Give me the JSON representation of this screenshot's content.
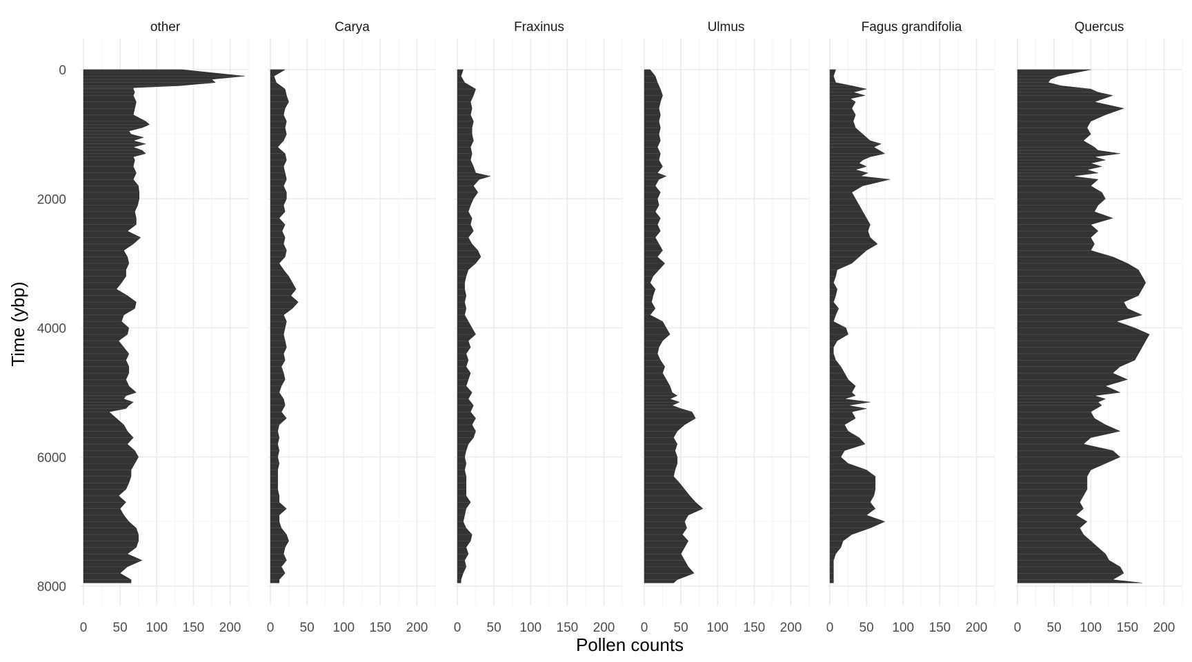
{
  "chart_data": {
    "type": "area",
    "orientation": "horizontal",
    "xlabel": "Pollen counts",
    "ylabel": "Time (ybp)",
    "xlim": [
      0,
      230
    ],
    "ylim": [
      0,
      8000
    ],
    "y_reversed": true,
    "x_ticks": [
      0,
      50,
      100,
      150,
      200
    ],
    "y_ticks": [
      0,
      2000,
      4000,
      6000,
      8000
    ],
    "fill_color": "#333333",
    "panels": [
      {
        "name": "other",
        "time": [
          0,
          100,
          150,
          200,
          250,
          280,
          300,
          350,
          400,
          500,
          600,
          700,
          800,
          850,
          900,
          950,
          1000,
          1050,
          1100,
          1150,
          1200,
          1250,
          1300,
          1350,
          1400,
          1500,
          1600,
          1700,
          1800,
          1900,
          2000,
          2100,
          2200,
          2300,
          2400,
          2500,
          2600,
          2700,
          2800,
          2900,
          3000,
          3100,
          3200,
          3300,
          3400,
          3500,
          3600,
          3700,
          3800,
          3900,
          4000,
          4100,
          4200,
          4300,
          4400,
          4500,
          4600,
          4700,
          4800,
          4900,
          5000,
          5050,
          5100,
          5150,
          5200,
          5250,
          5300,
          5400,
          5500,
          5600,
          5700,
          5800,
          5900,
          6000,
          6100,
          6200,
          6300,
          6400,
          6500,
          6600,
          6700,
          6800,
          6900,
          7000,
          7100,
          7200,
          7300,
          7400,
          7500,
          7600,
          7700,
          7800,
          7900,
          7950
        ],
        "counts": [
          135,
          220,
          175,
          180,
          130,
          68,
          68,
          70,
          68,
          72,
          70,
          68,
          85,
          90,
          80,
          62,
          65,
          82,
          68,
          85,
          68,
          80,
          85,
          68,
          70,
          68,
          72,
          68,
          75,
          76,
          76,
          74,
          70,
          72,
          72,
          60,
          78,
          68,
          55,
          60,
          62,
          58,
          58,
          52,
          45,
          60,
          72,
          70,
          55,
          52,
          62,
          60,
          48,
          55,
          62,
          58,
          62,
          62,
          58,
          62,
          72,
          58,
          55,
          68,
          62,
          58,
          35,
          45,
          55,
          60,
          68,
          60,
          70,
          75,
          70,
          65,
          65,
          62,
          58,
          48,
          58,
          50,
          55,
          62,
          72,
          75,
          75,
          72,
          60,
          80,
          60,
          50,
          65,
          65
        ]
      },
      {
        "name": "Carya",
        "time": [
          0,
          100,
          200,
          300,
          400,
          500,
          600,
          700,
          800,
          900,
          1000,
          1100,
          1200,
          1300,
          1400,
          1500,
          1600,
          1700,
          1800,
          1900,
          2000,
          2100,
          2200,
          2300,
          2400,
          2500,
          2600,
          2700,
          2800,
          2900,
          3000,
          3100,
          3200,
          3300,
          3400,
          3500,
          3600,
          3700,
          3800,
          3900,
          4000,
          4100,
          4200,
          4300,
          4400,
          4500,
          4600,
          4700,
          4800,
          4900,
          5000,
          5100,
          5200,
          5300,
          5400,
          5500,
          5600,
          5700,
          5800,
          5900,
          6000,
          6100,
          6200,
          6300,
          6400,
          6500,
          6600,
          6700,
          6800,
          6900,
          7000,
          7100,
          7200,
          7300,
          7400,
          7500,
          7600,
          7700,
          7800,
          7900,
          7950
        ],
        "counts": [
          20,
          5,
          8,
          20,
          22,
          25,
          20,
          18,
          22,
          20,
          22,
          18,
          10,
          20,
          22,
          18,
          20,
          22,
          18,
          22,
          22,
          18,
          20,
          12,
          20,
          16,
          20,
          18,
          22,
          20,
          12,
          18,
          25,
          30,
          35,
          28,
          38,
          30,
          18,
          22,
          20,
          18,
          20,
          22,
          18,
          20,
          15,
          18,
          20,
          15,
          12,
          18,
          20,
          15,
          22,
          12,
          10,
          12,
          10,
          12,
          10,
          12,
          10,
          10,
          10,
          10,
          12,
          12,
          22,
          12,
          12,
          15,
          22,
          25,
          20,
          18,
          22,
          15,
          20,
          12,
          12
        ]
      },
      {
        "name": "Fraxinus",
        "time": [
          0,
          100,
          200,
          300,
          400,
          500,
          600,
          700,
          800,
          900,
          1000,
          1100,
          1200,
          1300,
          1400,
          1500,
          1600,
          1650,
          1700,
          1800,
          1900,
          2000,
          2100,
          2200,
          2300,
          2400,
          2500,
          2600,
          2700,
          2800,
          2900,
          3000,
          3100,
          3200,
          3300,
          3400,
          3500,
          3600,
          3700,
          3800,
          3900,
          4000,
          4100,
          4200,
          4300,
          4400,
          4500,
          4600,
          4700,
          4800,
          4900,
          5000,
          5100,
          5200,
          5300,
          5400,
          5500,
          5600,
          5700,
          5800,
          5900,
          6000,
          6100,
          6200,
          6300,
          6400,
          6500,
          6600,
          6700,
          6800,
          6900,
          7000,
          7100,
          7200,
          7300,
          7400,
          7500,
          7600,
          7700,
          7800,
          7900,
          7950
        ],
        "counts": [
          8,
          5,
          10,
          25,
          22,
          18,
          20,
          18,
          22,
          20,
          20,
          22,
          18,
          20,
          18,
          22,
          25,
          45,
          30,
          22,
          28,
          22,
          18,
          15,
          20,
          18,
          22,
          15,
          20,
          28,
          32,
          25,
          15,
          12,
          10,
          10,
          12,
          10,
          12,
          10,
          15,
          20,
          25,
          15,
          18,
          12,
          15,
          12,
          18,
          15,
          12,
          20,
          15,
          22,
          18,
          25,
          20,
          25,
          22,
          15,
          12,
          10,
          12,
          10,
          12,
          12,
          12,
          12,
          18,
          12,
          10,
          8,
          12,
          20,
          18,
          12,
          15,
          10,
          12,
          8,
          5,
          5
        ]
      },
      {
        "name": "Ulmus",
        "time": [
          0,
          100,
          200,
          300,
          400,
          500,
          600,
          700,
          800,
          900,
          1000,
          1100,
          1200,
          1300,
          1400,
          1500,
          1600,
          1650,
          1700,
          1800,
          1900,
          2000,
          2100,
          2200,
          2300,
          2400,
          2500,
          2600,
          2700,
          2800,
          2900,
          3000,
          3100,
          3200,
          3300,
          3400,
          3500,
          3600,
          3700,
          3800,
          3900,
          4000,
          4100,
          4200,
          4300,
          4400,
          4500,
          4600,
          4700,
          4800,
          4900,
          5000,
          5050,
          5100,
          5150,
          5200,
          5250,
          5300,
          5400,
          5500,
          5600,
          5700,
          5800,
          5900,
          6000,
          6100,
          6200,
          6300,
          6400,
          6500,
          6600,
          6700,
          6800,
          6900,
          7000,
          7100,
          7200,
          7300,
          7400,
          7500,
          7600,
          7700,
          7800,
          7900,
          7950
        ],
        "counts": [
          8,
          15,
          18,
          22,
          25,
          22,
          20,
          22,
          20,
          22,
          20,
          22,
          18,
          22,
          20,
          25,
          18,
          30,
          20,
          15,
          22,
          18,
          20,
          15,
          22,
          18,
          22,
          15,
          20,
          25,
          18,
          28,
          20,
          12,
          8,
          15,
          12,
          10,
          15,
          8,
          25,
          30,
          35,
          25,
          20,
          18,
          22,
          28,
          25,
          30,
          35,
          38,
          45,
          35,
          48,
          38,
          50,
          65,
          70,
          55,
          45,
          40,
          45,
          42,
          45,
          45,
          42,
          40,
          48,
          55,
          62,
          70,
          80,
          60,
          55,
          58,
          52,
          60,
          55,
          50,
          55,
          60,
          68,
          45,
          40
        ]
      },
      {
        "name": "Fagus grandifolia",
        "time": [
          0,
          100,
          200,
          250,
          300,
          350,
          400,
          450,
          500,
          600,
          700,
          800,
          900,
          1000,
          1050,
          1100,
          1150,
          1200,
          1300,
          1350,
          1400,
          1450,
          1500,
          1550,
          1600,
          1650,
          1700,
          1800,
          1900,
          2000,
          2100,
          2200,
          2300,
          2400,
          2500,
          2600,
          2700,
          2800,
          2900,
          3000,
          3100,
          3200,
          3300,
          3400,
          3500,
          3600,
          3700,
          3800,
          3900,
          4000,
          4100,
          4200,
          4300,
          4400,
          4500,
          4600,
          4700,
          4800,
          4900,
          5000,
          5050,
          5100,
          5150,
          5200,
          5250,
          5300,
          5400,
          5500,
          5600,
          5700,
          5800,
          5900,
          6000,
          6100,
          6200,
          6300,
          6400,
          6500,
          6600,
          6700,
          6800,
          6900,
          7000,
          7100,
          7200,
          7300,
          7400,
          7500,
          7600,
          7700,
          7800,
          7900,
          7950
        ],
        "counts": [
          8,
          5,
          8,
          30,
          50,
          32,
          48,
          28,
          35,
          30,
          35,
          32,
          35,
          45,
          50,
          55,
          70,
          60,
          75,
          55,
          45,
          40,
          50,
          35,
          52,
          42,
          82,
          45,
          30,
          35,
          40,
          45,
          50,
          55,
          52,
          55,
          65,
          50,
          40,
          30,
          10,
          8,
          5,
          10,
          8,
          5,
          12,
          8,
          5,
          22,
          25,
          10,
          5,
          5,
          8,
          15,
          20,
          25,
          35,
          30,
          35,
          20,
          55,
          25,
          50,
          30,
          35,
          20,
          25,
          40,
          48,
          20,
          15,
          25,
          50,
          62,
          62,
          62,
          60,
          55,
          62,
          50,
          75,
          55,
          30,
          18,
          15,
          8,
          5,
          5,
          5,
          5,
          5
        ]
      },
      {
        "name": "Quercus",
        "time": [
          0,
          100,
          150,
          200,
          250,
          300,
          350,
          400,
          500,
          600,
          700,
          800,
          900,
          1000,
          1100,
          1200,
          1250,
          1300,
          1350,
          1400,
          1450,
          1500,
          1550,
          1600,
          1650,
          1700,
          1800,
          1900,
          2000,
          2100,
          2200,
          2300,
          2400,
          2500,
          2600,
          2700,
          2800,
          2900,
          3000,
          3100,
          3200,
          3300,
          3400,
          3500,
          3600,
          3700,
          3800,
          3900,
          4000,
          4100,
          4200,
          4300,
          4400,
          4500,
          4600,
          4700,
          4800,
          4900,
          5000,
          5050,
          5100,
          5150,
          5200,
          5300,
          5400,
          5500,
          5600,
          5700,
          5800,
          5900,
          6000,
          6100,
          6200,
          6300,
          6400,
          6500,
          6600,
          6700,
          6800,
          6900,
          7000,
          7100,
          7200,
          7300,
          7400,
          7500,
          7600,
          7700,
          7800,
          7900,
          7950
        ],
        "counts": [
          100,
          55,
          45,
          42,
          60,
          100,
          110,
          130,
          105,
          145,
          120,
          100,
          95,
          100,
          90,
          105,
          110,
          140,
          105,
          120,
          100,
          115,
          95,
          110,
          75,
          110,
          100,
          115,
          120,
          110,
          105,
          130,
          100,
          110,
          100,
          105,
          100,
          130,
          150,
          165,
          170,
          175,
          170,
          165,
          145,
          150,
          170,
          135,
          160,
          180,
          175,
          170,
          165,
          160,
          140,
          130,
          150,
          120,
          140,
          105,
          120,
          110,
          115,
          100,
          105,
          120,
          140,
          100,
          90,
          130,
          140,
          120,
          100,
          95,
          95,
          95,
          90,
          85,
          90,
          80,
          95,
          85,
          90,
          100,
          110,
          120,
          125,
          140,
          145,
          130,
          170
        ]
      }
    ]
  }
}
